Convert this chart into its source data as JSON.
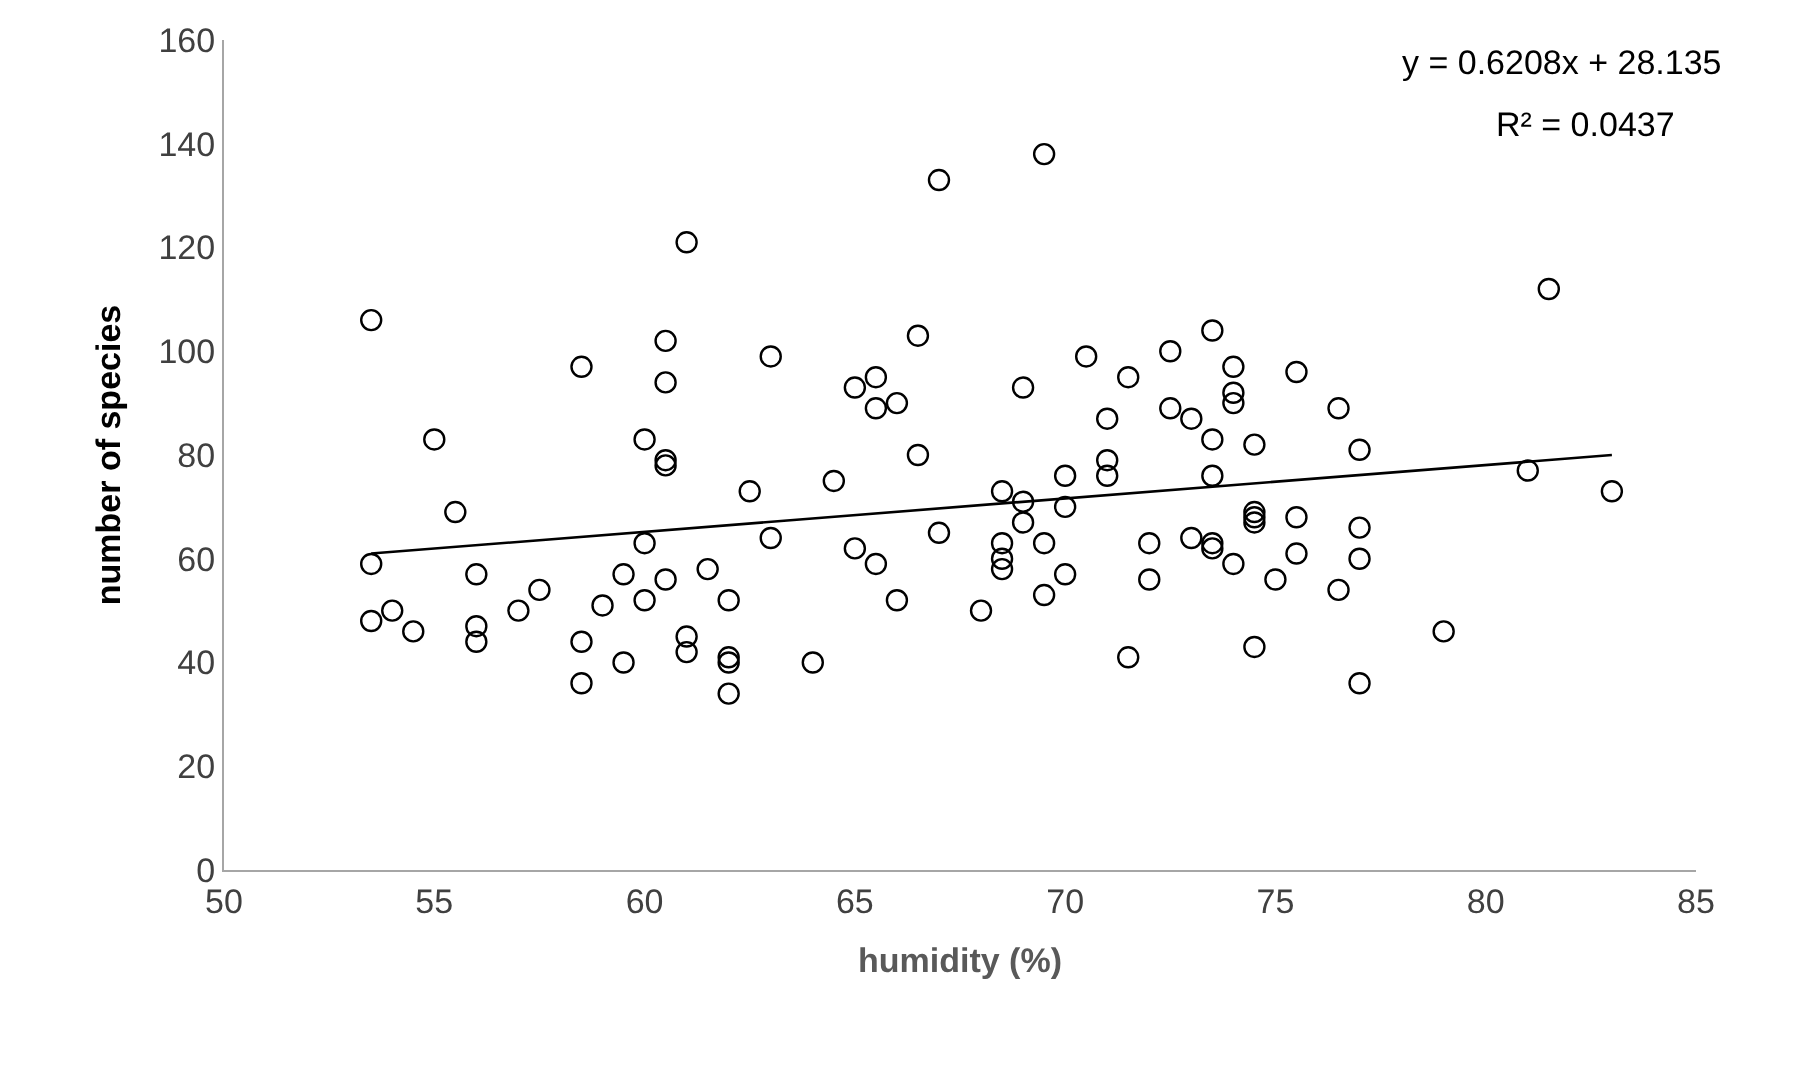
{
  "chart_data": {
    "type": "scatter",
    "xlabel": "humidity (%)",
    "ylabel": "number of species",
    "annotations": [
      "y = 0.6208x + 28.135",
      "R² = 0.0437"
    ],
    "xlim": [
      50,
      85
    ],
    "xticks": [
      50,
      55,
      60,
      65,
      70,
      75,
      80,
      85
    ],
    "ylim": [
      0,
      160
    ],
    "yticks": [
      0,
      20,
      40,
      60,
      80,
      100,
      120,
      140,
      160
    ],
    "legend": false,
    "marker": "circle",
    "series": [
      {
        "color": "#000000",
        "x": [
          53.5,
          53.5,
          53.5,
          54,
          54.5,
          55,
          55.5,
          56,
          56,
          56,
          57,
          57.5,
          58.5,
          58.5,
          58.5,
          59,
          59.5,
          59.5,
          60,
          60,
          60,
          60.5,
          60.5,
          60.5,
          60.5,
          60.5,
          61,
          61,
          61,
          61.5,
          62,
          62,
          62,
          62,
          62.5,
          63,
          63,
          64,
          64.5,
          65,
          65,
          65.5,
          65.5,
          65.5,
          66,
          66,
          66.5,
          66.5,
          67,
          67,
          68,
          68.5,
          68.5,
          68.5,
          68.5,
          69,
          69,
          69,
          69.5,
          69.5,
          69.5,
          70,
          70,
          70,
          70.5,
          71,
          71,
          71,
          71.5,
          71.5,
          72,
          72,
          72.5,
          72.5,
          73,
          73,
          73.5,
          73.5,
          73.5,
          73.5,
          73.5,
          74,
          74,
          74,
          74,
          74.5,
          74.5,
          74.5,
          74.5,
          74.5,
          75,
          75.5,
          75.5,
          75.5,
          76.5,
          76.5,
          77,
          77,
          77,
          77,
          79,
          81,
          81.5,
          83
        ],
        "values": [
          106,
          59,
          48,
          50,
          46,
          83,
          69,
          57,
          47,
          44,
          50,
          54,
          97,
          44,
          36,
          51,
          57,
          40,
          83,
          63,
          52,
          102,
          94,
          79,
          78,
          56,
          121,
          45,
          42,
          58,
          52,
          41,
          40,
          34,
          73,
          99,
          64,
          40,
          75,
          93,
          62,
          95,
          89,
          59,
          90,
          52,
          103,
          80,
          133,
          65,
          50,
          73,
          63,
          60,
          58,
          93,
          71,
          67,
          138,
          63,
          53,
          76,
          70,
          57,
          99,
          87,
          79,
          76,
          95,
          41,
          63,
          56,
          100,
          89,
          87,
          64,
          104,
          83,
          76,
          63,
          62,
          97,
          92,
          90,
          59,
          82,
          69,
          68,
          67,
          43,
          56,
          96,
          68,
          61,
          89,
          54,
          81,
          66,
          60,
          36,
          46,
          77,
          112,
          73
        ]
      },
      {
        "type": "line",
        "color": "#000000",
        "x": [
          53.5,
          83
        ],
        "values": [
          61,
          80
        ],
        "marker": "none"
      }
    ]
  }
}
